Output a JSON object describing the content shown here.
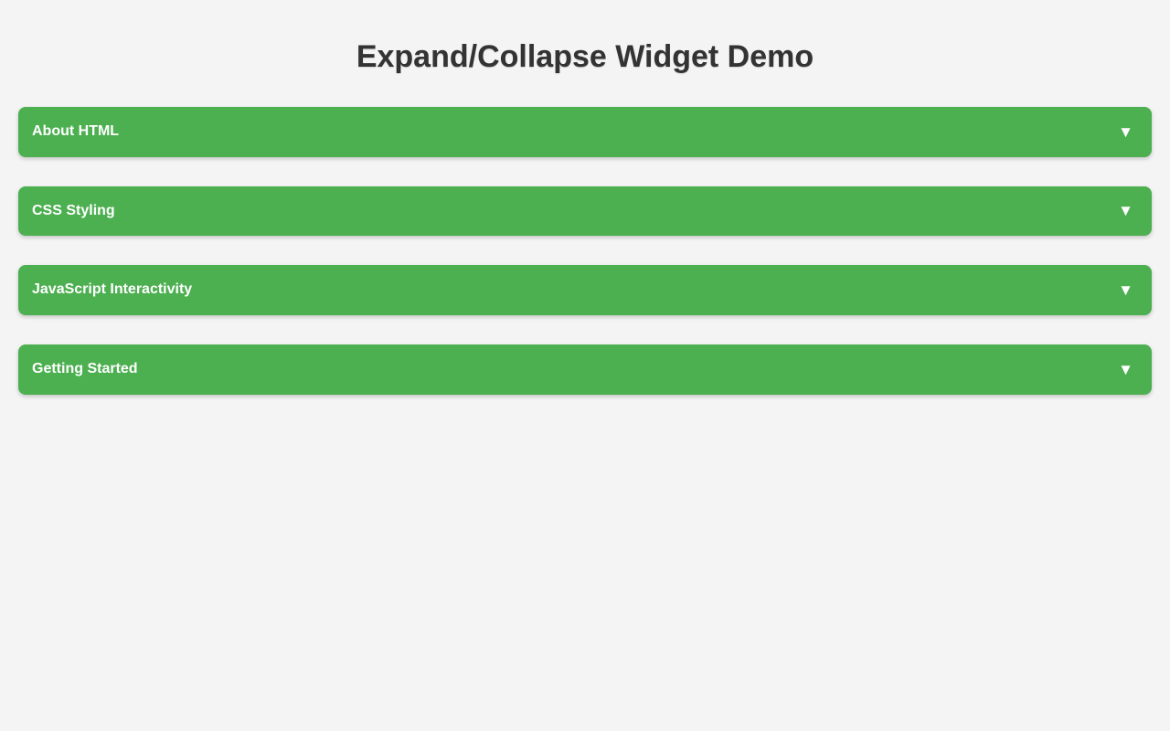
{
  "page": {
    "title": "Expand/Collapse Widget Demo"
  },
  "accordion": {
    "caret_collapsed": "▼",
    "sections": [
      {
        "label": "About HTML",
        "expanded": false
      },
      {
        "label": "CSS Styling",
        "expanded": false
      },
      {
        "label": "JavaScript Interactivity",
        "expanded": false
      },
      {
        "label": "Getting Started",
        "expanded": false
      }
    ]
  },
  "colors": {
    "background": "#f4f4f4",
    "accent_green": "#4caf50",
    "title_text": "#333333",
    "header_text": "#ffffff"
  }
}
